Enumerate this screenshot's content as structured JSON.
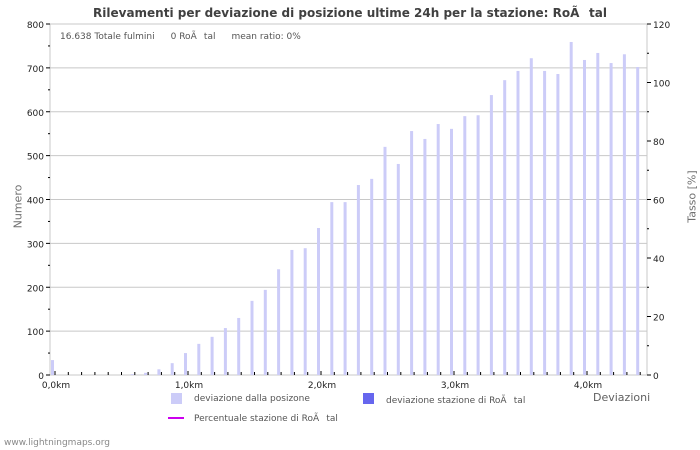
{
  "title": "Rilevamenti per deviazione di posizione ultime 24h per la stazione: RoÃtal",
  "info": {
    "total": "16.638 Totale fulmini",
    "station": "0 RoÃtal",
    "mean_ratio": "mean ratio: 0%"
  },
  "axes": {
    "left_label": "Numero",
    "right_label": "Tasso [%]",
    "x_label": "Deviazioni"
  },
  "legend": {
    "series1": "deviazione dalla posizone",
    "series2": "deviazione stazione di RoÃtal",
    "series3": "Percentuale stazione di RoÃtal"
  },
  "colors": {
    "series1": "#ccccf8",
    "series2": "#6666ee",
    "series3": "#cc00ee",
    "grid": "#c8c8c8"
  },
  "footer": "www.lightningmaps.org",
  "chart_data": {
    "type": "bar",
    "title": "Rilevamenti per deviazione di posizione ultime 24h per la stazione: RoÃtal",
    "xlabel": "Deviazioni",
    "ylabel": "Numero",
    "y2label": "Tasso [%]",
    "ylim": [
      0,
      800
    ],
    "y2lim": [
      0,
      120
    ],
    "yticks": [
      0,
      100,
      200,
      300,
      400,
      500,
      600,
      700,
      800
    ],
    "y2ticks": [
      0,
      20,
      40,
      60,
      80,
      100,
      120
    ],
    "xtick_labels": [
      "0,0km",
      "1,0km",
      "2,0km",
      "3,0km",
      "4,0km"
    ],
    "grid": true,
    "legend_position": "bottom",
    "categories": [
      "0.0",
      "0.1",
      "0.2",
      "0.3",
      "0.4",
      "0.5",
      "0.6",
      "0.7",
      "0.8",
      "0.9",
      "1.0",
      "1.1",
      "1.2",
      "1.3",
      "1.4",
      "1.5",
      "1.6",
      "1.7",
      "1.8",
      "1.9",
      "2.0",
      "2.1",
      "2.2",
      "2.3",
      "2.4",
      "2.5",
      "2.6",
      "2.7",
      "2.8",
      "2.9",
      "3.0",
      "3.1",
      "3.2",
      "3.3",
      "3.4",
      "3.5",
      "3.6",
      "3.7",
      "3.8",
      "3.9",
      "4.0",
      "4.1",
      "4.2",
      "4.3",
      "4.4"
    ],
    "series": [
      {
        "name": "deviazione dalla posizone",
        "values": [
          34,
          0,
          0,
          0,
          0,
          0,
          2,
          5,
          13,
          27,
          50,
          71,
          87,
          107,
          130,
          169,
          194,
          241,
          285,
          289,
          335,
          394,
          394,
          433,
          447,
          520,
          481,
          556,
          538,
          572,
          561,
          590,
          592,
          638,
          672,
          693,
          722,
          693,
          686,
          759,
          718,
          734,
          711,
          731,
          702
        ]
      },
      {
        "name": "deviazione stazione di RoÃtal",
        "values": [
          0,
          0,
          0,
          0,
          0,
          0,
          0,
          0,
          0,
          0,
          0,
          0,
          0,
          0,
          0,
          0,
          0,
          0,
          0,
          0,
          0,
          0,
          0,
          0,
          0,
          0,
          0,
          0,
          0,
          0,
          0,
          0,
          0,
          0,
          0,
          0,
          0,
          0,
          0,
          0,
          0,
          0,
          0,
          0,
          0
        ]
      },
      {
        "name": "Percentuale stazione di RoÃtal",
        "axis": "right",
        "values": [
          0,
          0,
          0,
          0,
          0,
          0,
          0,
          0,
          0,
          0,
          0,
          0,
          0,
          0,
          0,
          0,
          0,
          0,
          0,
          0,
          0,
          0,
          0,
          0,
          0,
          0,
          0,
          0,
          0,
          0,
          0,
          0,
          0,
          0,
          0,
          0,
          0,
          0,
          0,
          0,
          0,
          0,
          0,
          0,
          0
        ]
      }
    ]
  }
}
